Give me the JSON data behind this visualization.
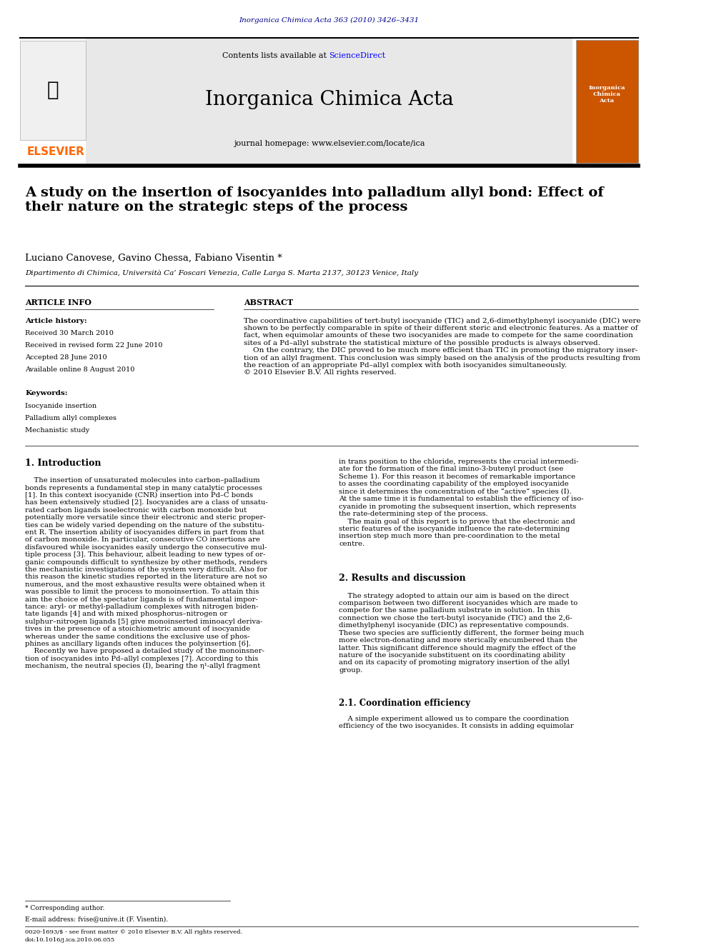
{
  "page_width": 9.92,
  "page_height": 13.23,
  "dpi": 100,
  "bg_color": "#ffffff",
  "top_journal_ref": "Inorganica Chimica Acta 363 (2010) 3426–3431",
  "top_ref_color": "#00008B",
  "journal_name": "Inorganica Chimica Acta",
  "journal_homepage": "journal homepage: www.elsevier.com/locate/ica",
  "contents_line": "Contents lists available at",
  "sciencedirect": "ScienceDirect",
  "sciencedirect_color": "#0000FF",
  "elsevier_color": "#FF6600",
  "header_bg": "#E8E8E8",
  "article_title": "A study on the insertion of isocyanides into palladium allyl bond: Effect of\ntheir nature on the strategic steps of the process",
  "authors": "Luciano Canovese, Gavino Chessa, Fabiano Visentin *",
  "affiliation": "Dipartimento di Chimica, Università Ca’ Foscari Venezia, Calle Larga S. Marta 2137, 30123 Venice, Italy",
  "article_info_label": "ARTICLE INFO",
  "abstract_label": "ABSTRACT",
  "article_history": "Article history:",
  "received": "Received 30 March 2010",
  "received_revised": "Received in revised form 22 June 2010",
  "accepted": "Accepted 28 June 2010",
  "available": "Available online 8 August 2010",
  "keywords_label": "Keywords:",
  "keywords": [
    "Isocyanide insertion",
    "Palladium allyl complexes",
    "Mechanistic study"
  ],
  "abstract_text": "The coordinative capabilities of tert-butyl isocyanide (TIC) and 2,6-dimethylphenyl isocyanide (DIC) were\nshown to be perfectly comparable in spite of their different steric and electronic features. As a matter of\nfact, when equimolar amounts of these two isocyanides are made to compete for the same coordination\nsites of a Pd–allyl substrate the statistical mixture of the possible products is always observed.\n    On the contrary, the DIC proved to be much more efficient than TIC in promoting the migratory inser-\ntion of an allyl fragment. This conclusion was simply based on the analysis of the products resulting from\nthe reaction of an appropriate Pd–allyl complex with both isocyanides simultaneously.\n© 2010 Elsevier B.V. All rights reserved.",
  "section1_title": "1. Introduction",
  "intro_text": "    The insertion of unsaturated molecules into carbon–palladium\nbonds represents a fundamental step in many catalytic processes\n[1]. In this context isocyanide (CNR) insertion into Pd–C bonds\nhas been extensively studied [2]. Isocyanides are a class of unsatu-\nrated carbon ligands isoelectronic with carbon monoxide but\npotentially more versatile since their electronic and steric proper-\nties can be widely varied depending on the nature of the substitu-\nent R. The insertion ability of isocyanides differs in part from that\nof carbon monoxide. In particular, consecutive CO insertions are\ndisfavoured while isocyanides easily undergo the consecutive mul-\ntiple process [3]. This behaviour, albeit leading to new types of or-\nganic compounds difficult to synthesize by other methods, renders\nthe mechanistic investigations of the system very difficult. Also for\nthis reason the kinetic studies reported in the literature are not so\nnumerous, and the most exhaustive results were obtained when it\nwas possible to limit the process to monoinsertion. To attain this\naim the choice of the spectator ligands is of fundamental impor-\ntance: aryl- or methyl-palladium complexes with nitrogen biden-\ntate ligands [4] and with mixed phosphorus–nitrogen or\nsulphur–nitrogen ligands [5] give monoinserted iminoacyl deriva-\ntives in the presence of a stoichiometric amount of isocyanide\nwhereas under the same conditions the exclusive use of phos-\nphines as ancillary ligands often induces the polyinsertion [6].\n    Recently we have proposed a detailed study of the monoinsner-\ntion of isocyanides into Pd–allyl complexes [7]. According to this\nmechanism, the neutral species (I), bearing the η¹-allyl fragment",
  "right_col_text": "in trans position to the chloride, represents the crucial intermedi-\nate for the formation of the final imino-3-butenyl product (see\nScheme 1). For this reason it becomes of remarkable importance\nto asses the coordinating capability of the employed isocyanide\nsince it determines the concentration of the “active” species (I).\nAt the same time it is fundamental to establish the efficiency of iso-\ncyanide in promoting the subsequent insertion, which represents\nthe rate-determining step of the process.\n    The main goal of this report is to prove that the electronic and\nsteric features of the isocyanide influence the rate-determining\ninsertion step much more than pre-coordination to the metal\ncentre.",
  "section2_title": "2. Results and discussion",
  "results_text": "    The strategy adopted to attain our aim is based on the direct\ncomparison between two different isocyanides which are made to\ncompete for the same palladium substrate in solution. In this\nconnection we chose the tert-butyl isocyanide (TIC) and the 2,6-\ndimethylphenyl isocyanide (DIC) as representative compounds.\nThese two species are sufficiently different, the former being much\nmore electron-donating and more sterically encumbered than the\nlatter. This significant difference should magnify the effect of the\nnature of the isocyanide substituent on its coordinating ability\nand on its capacity of promoting migratory insertion of the allyl\ngroup.",
  "section21_title": "2.1. Coordination efficiency",
  "coord_text": "    A simple experiment allowed us to compare the coordination\nefficiency of the two isocyanides. It consists in adding equimolar",
  "footnote_star": "* Corresponding author.",
  "footnote_email": "E-mail address: fvise@unive.it (F. Visentin).",
  "footnote_issn": "0020-1693/$ - see front matter © 2010 Elsevier B.V. All rights reserved.",
  "footnote_doi": "doi:10.1016/j.ica.2010.06.055"
}
